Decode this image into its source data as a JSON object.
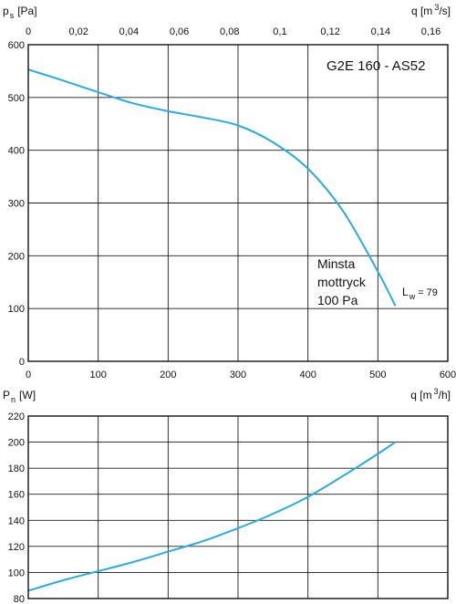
{
  "chart_data": [
    {
      "type": "line",
      "title": "G2E 160 - AS52",
      "ylabel": {
        "symbol": "p",
        "sub": "s",
        "unit": "[Pa]"
      },
      "xlabel_top": {
        "text": "q [m",
        "sup": "3",
        "after": "/s]"
      },
      "xlabel_bottom": {
        "text": "q [m",
        "sup": "3",
        "after": "/h]"
      },
      "xlim": [
        0,
        600
      ],
      "ylim": [
        0,
        600
      ],
      "x_ticks": [
        0,
        100,
        200,
        300,
        400,
        500,
        600
      ],
      "y_ticks": [
        0,
        100,
        200,
        300,
        400,
        500,
        600
      ],
      "top_xlim": [
        0,
        0.1667
      ],
      "top_ticks": [
        {
          "value": 0,
          "label": "0"
        },
        {
          "value": 0.02,
          "label": "0,02"
        },
        {
          "value": 0.04,
          "label": "0,04"
        },
        {
          "value": 0.06,
          "label": "0,06"
        },
        {
          "value": 0.08,
          "label": "0,08"
        },
        {
          "value": 0.1,
          "label": "0,1"
        },
        {
          "value": 0.12,
          "label": "0,12"
        },
        {
          "value": 0.14,
          "label": "0,14"
        },
        {
          "value": 0.16,
          "label": "0,16"
        }
      ],
      "grid": true,
      "color": "#29abe2",
      "series": [
        {
          "x": [
            0,
            50,
            100,
            150,
            200,
            250,
            300,
            350,
            400,
            450,
            500,
            525
          ],
          "y": [
            553,
            532,
            510,
            489,
            474,
            462,
            447,
            415,
            365,
            285,
            170,
            105
          ]
        }
      ],
      "annotations": {
        "min_pressure": [
          "Minsta",
          "mottryck",
          "100  Pa"
        ],
        "lw": {
          "symbol": "L",
          "sub": "w",
          "value": "= 79"
        }
      }
    },
    {
      "type": "line",
      "ylabel": {
        "symbol": "P",
        "sub": "n",
        "unit": "[W]"
      },
      "xlim": [
        0,
        600
      ],
      "ylim": [
        80,
        220
      ],
      "y_ticks": [
        80,
        100,
        120,
        140,
        160,
        180,
        200,
        220
      ],
      "grid": true,
      "color": "#29abe2",
      "series": [
        {
          "x": [
            0,
            50,
            100,
            150,
            200,
            250,
            300,
            350,
            400,
            450,
            500,
            525
          ],
          "y": [
            86,
            94,
            101,
            108,
            116,
            124,
            134,
            145,
            158,
            174,
            191,
            200
          ]
        }
      ]
    }
  ]
}
